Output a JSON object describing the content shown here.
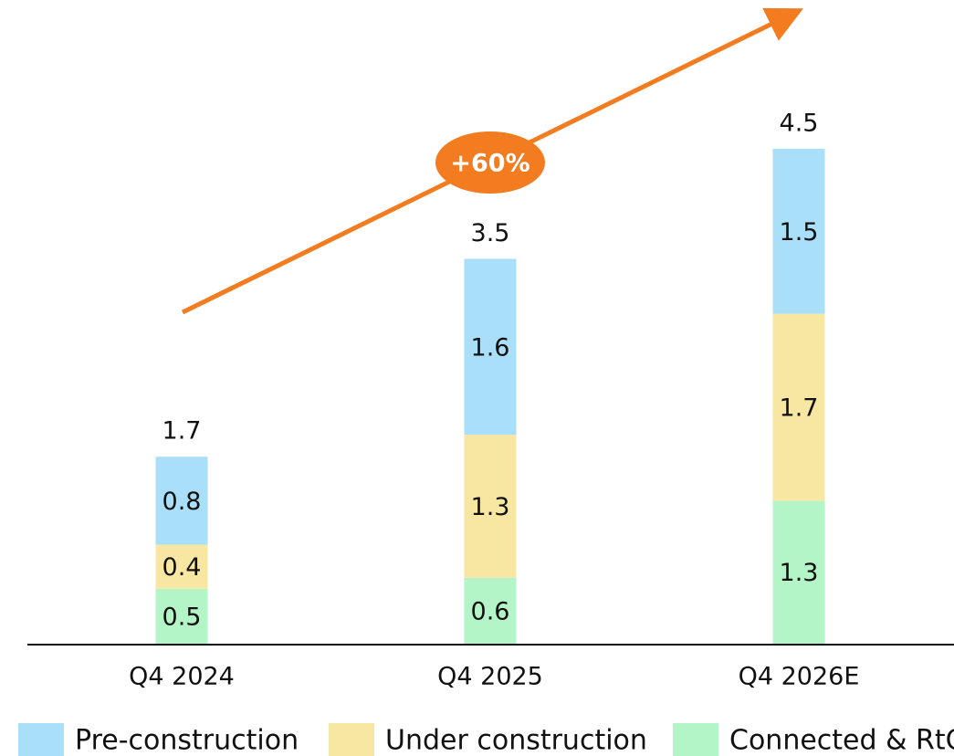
{
  "chart_data": {
    "type": "stacked-bar",
    "categories": [
      "Q4 2024",
      "Q4 2025",
      "Q4 2026E"
    ],
    "series": [
      {
        "name": "Connected & RtO",
        "color": "#b3f5c6",
        "values": [
          0.5,
          0.6,
          1.3
        ]
      },
      {
        "name": "Under construction",
        "color": "#f8e6a3",
        "values": [
          0.4,
          1.3,
          1.7
        ]
      },
      {
        "name": "Pre-construction",
        "color": "#a9dff8",
        "values": [
          0.8,
          1.6,
          1.5
        ]
      }
    ],
    "totals": [
      1.7,
      3.5,
      4.5
    ],
    "annotation": "+60%",
    "legend_order": [
      2,
      1,
      0
    ]
  }
}
